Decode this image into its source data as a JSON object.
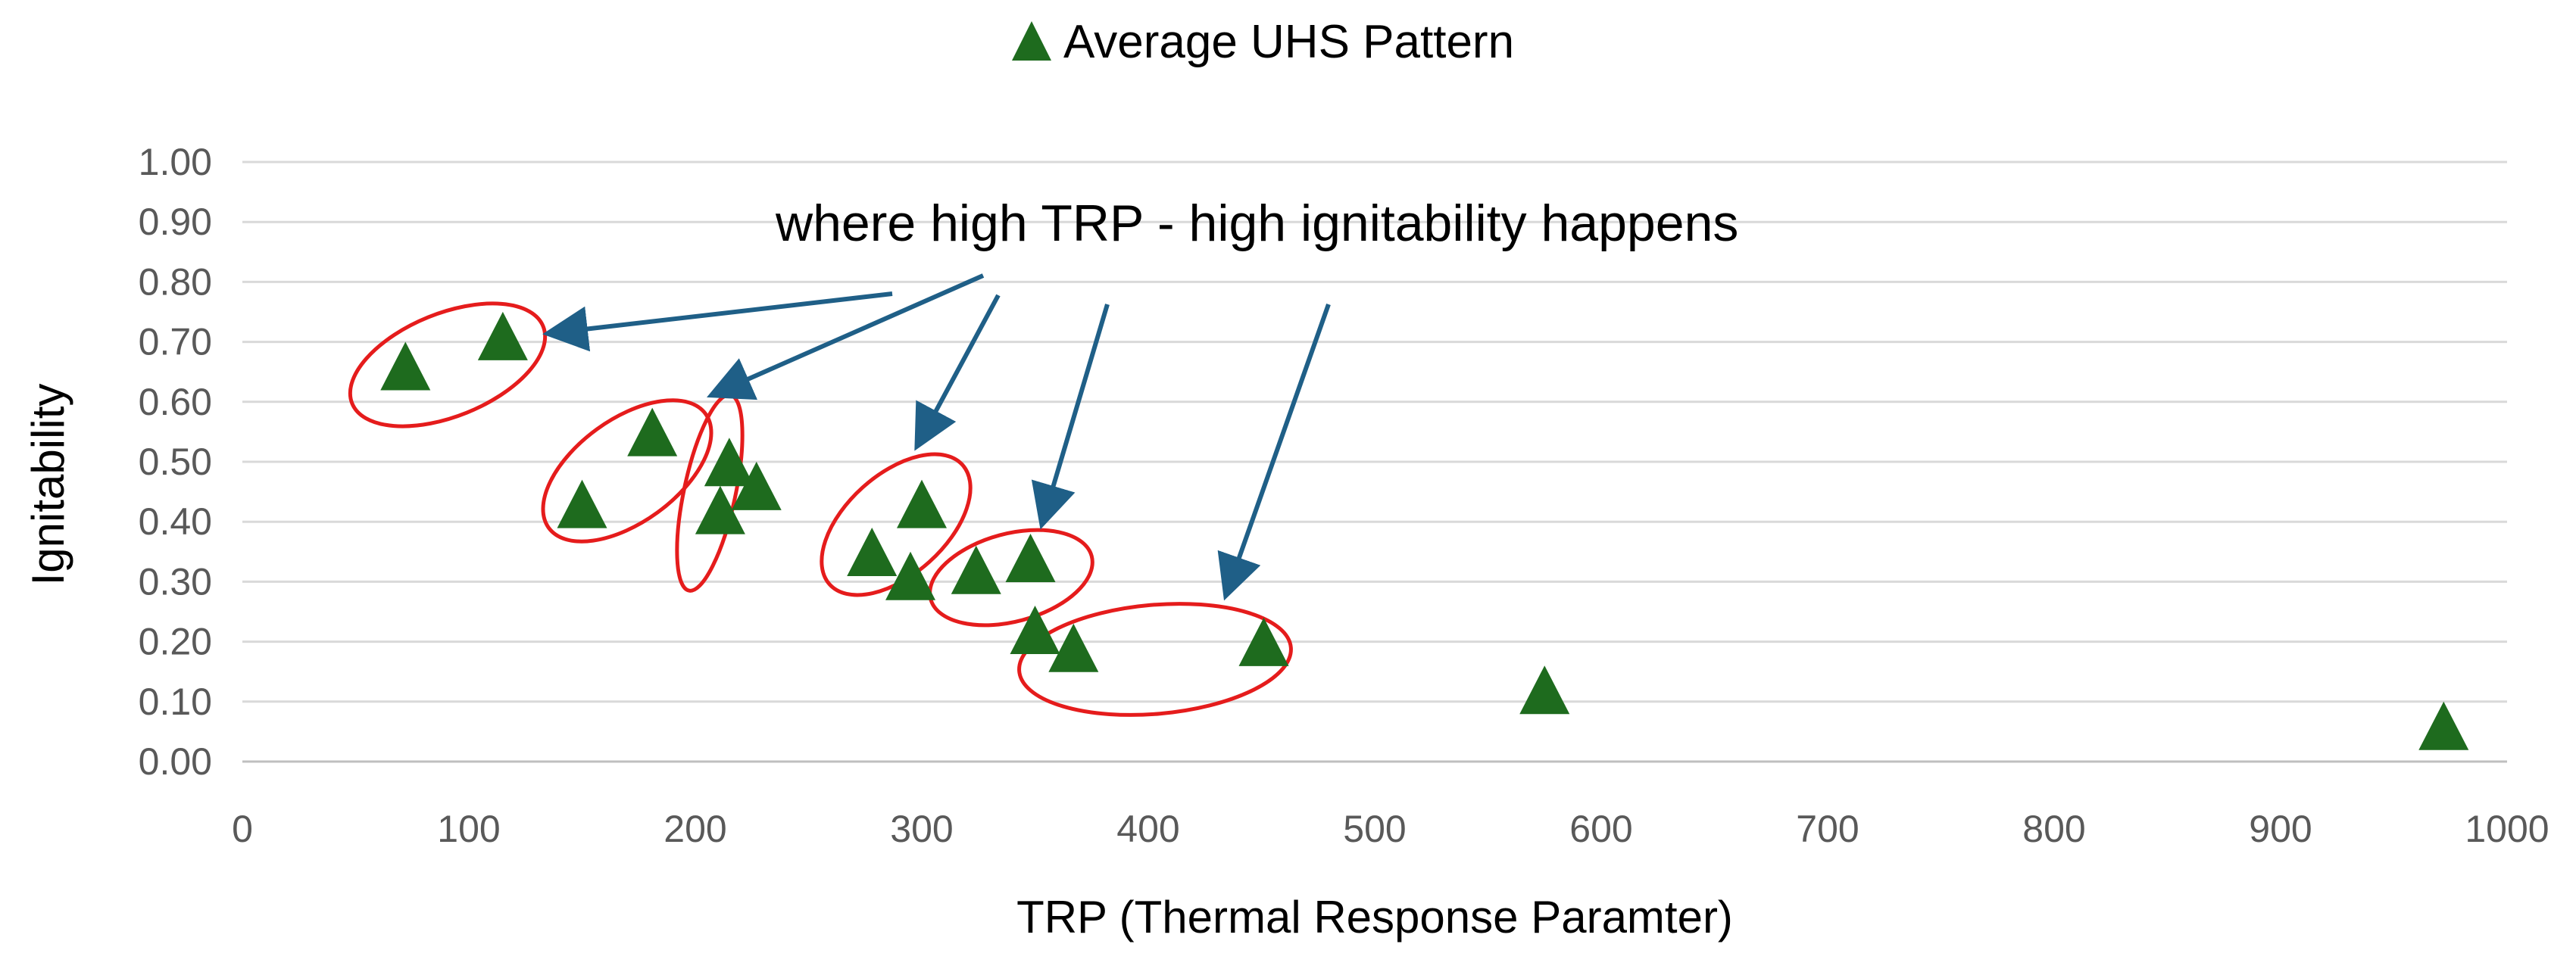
{
  "chart_data": {
    "type": "scatter",
    "title": "",
    "xlabel": "TRP (Thermal Response Paramter)",
    "ylabel": "Ignitability",
    "xlim": [
      0,
      1000
    ],
    "ylim": [
      0,
      1
    ],
    "x_ticks": [
      "0",
      "100",
      "200",
      "300",
      "400",
      "500",
      "600",
      "700",
      "800",
      "900",
      "1000"
    ],
    "y_ticks": [
      "0.00",
      "0.10",
      "0.20",
      "0.30",
      "0.40",
      "0.50",
      "0.60",
      "0.70",
      "0.80",
      "0.90",
      "1.00"
    ],
    "grid": "horizontal",
    "legend": "top-center",
    "series": [
      {
        "name": "Average UHS Pattern",
        "color": "#1e6b1e",
        "marker": "triangle",
        "points": [
          {
            "x": 72,
            "y": 0.65
          },
          {
            "x": 115,
            "y": 0.7
          },
          {
            "x": 150,
            "y": 0.42
          },
          {
            "x": 181,
            "y": 0.54
          },
          {
            "x": 211,
            "y": 0.41
          },
          {
            "x": 215,
            "y": 0.49
          },
          {
            "x": 227,
            "y": 0.45
          },
          {
            "x": 278,
            "y": 0.34
          },
          {
            "x": 295,
            "y": 0.3
          },
          {
            "x": 300,
            "y": 0.42
          },
          {
            "x": 324,
            "y": 0.31
          },
          {
            "x": 348,
            "y": 0.33
          },
          {
            "x": 350,
            "y": 0.21
          },
          {
            "x": 367,
            "y": 0.18
          },
          {
            "x": 451,
            "y": 0.19
          },
          {
            "x": 575,
            "y": 0.11
          },
          {
            "x": 972,
            "y": 0.05
          }
        ]
      }
    ],
    "annotation": {
      "text": "where high TRP - high ignitability happens",
      "highlight_color": "#e51c1c",
      "arrow_color": "#1f5f87"
    }
  }
}
